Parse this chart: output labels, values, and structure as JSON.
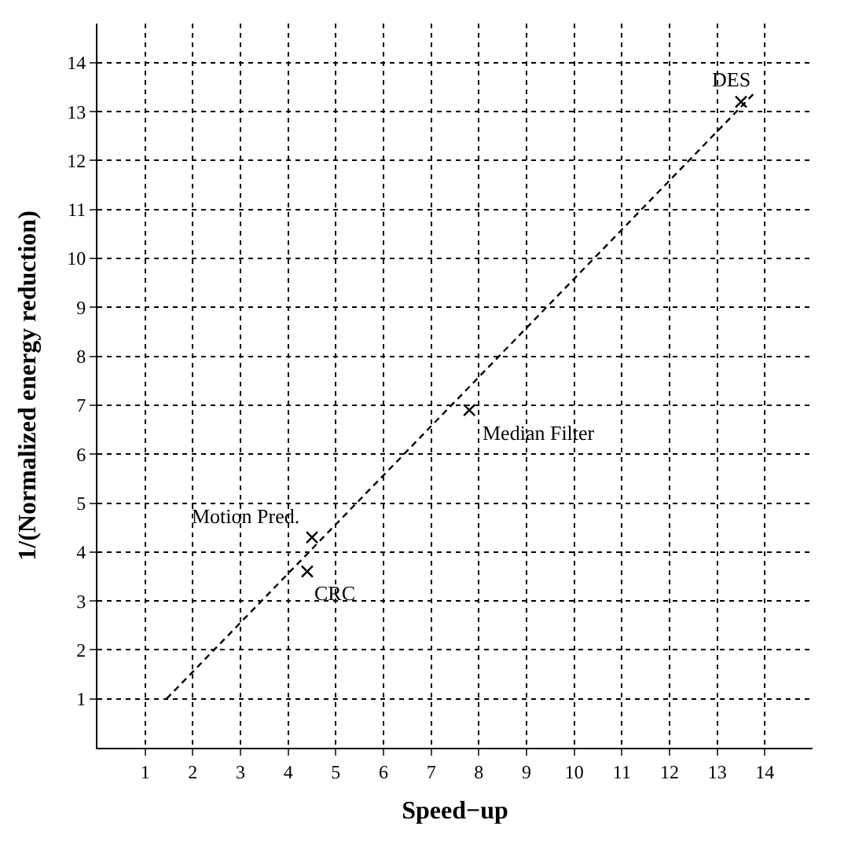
{
  "chart_data": {
    "type": "scatter",
    "xlabel": "Speed−up",
    "ylabel": "1/(Normalized energy reduction)",
    "xlim": [
      0,
      15
    ],
    "ylim": [
      0,
      14.8
    ],
    "xticks": [
      1,
      2,
      3,
      4,
      5,
      6,
      7,
      8,
      9,
      10,
      11,
      12,
      13,
      14
    ],
    "yticks": [
      1,
      2,
      3,
      4,
      5,
      6,
      7,
      8,
      9,
      10,
      11,
      12,
      13,
      14
    ],
    "grid": true,
    "marker": "cross",
    "series": [
      {
        "color": "#000000",
        "x": [
          4.4,
          4.5,
          7.8,
          13.5
        ],
        "values": [
          3.6,
          4.3,
          6.9,
          13.2
        ]
      },
      {
        "type": "line",
        "color": "#000000",
        "line_style": "dashed",
        "marker": "none",
        "x": [
          1.45,
          13.8
        ],
        "values": [
          1.0,
          13.4
        ]
      }
    ],
    "annotations": [
      {
        "text": "CRC",
        "x": 4.4,
        "y": 3.6
      },
      {
        "text": "Motion Pred.",
        "x": 4.5,
        "y": 4.3
      },
      {
        "text": "Median Filter",
        "x": 7.8,
        "y": 6.9
      },
      {
        "text": "DES",
        "x": 13.5,
        "y": 13.2
      }
    ]
  }
}
